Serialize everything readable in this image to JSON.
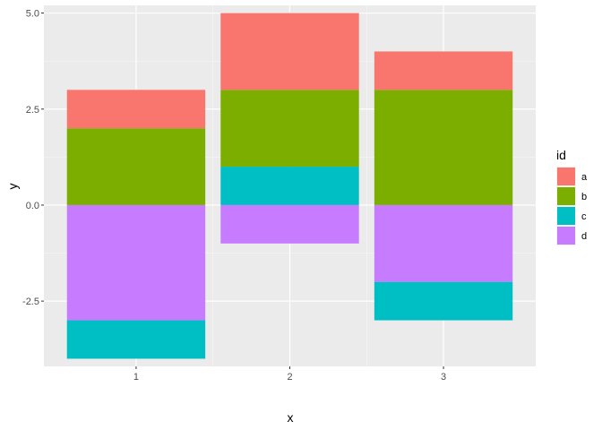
{
  "chart_data": {
    "type": "bar",
    "stacked": true,
    "categories": [
      "1",
      "2",
      "3"
    ],
    "series": [
      {
        "name": "a",
        "color": "#F8766D",
        "values": [
          1,
          2,
          1
        ]
      },
      {
        "name": "b",
        "color": "#7CAE00",
        "values": [
          2,
          2,
          3
        ]
      },
      {
        "name": "c",
        "color": "#00BFC4",
        "values": [
          -1,
          1,
          -1
        ]
      },
      {
        "name": "d",
        "color": "#C77CFF",
        "values": [
          -3,
          -1,
          -2
        ]
      }
    ],
    "stack_order_positive": [
      "c",
      "b",
      "a"
    ],
    "stack_order_negative": [
      "d",
      "c"
    ],
    "xlabel": "x",
    "ylabel": "y",
    "ylim": [
      -4.2,
      5.2
    ],
    "yticks": [
      -2.5,
      0.0,
      2.5,
      5.0
    ],
    "ytick_labels": [
      "-2.5",
      "0.0",
      "2.5",
      "5.0"
    ],
    "grid": true,
    "legend": {
      "title": "id",
      "position": "right"
    }
  }
}
